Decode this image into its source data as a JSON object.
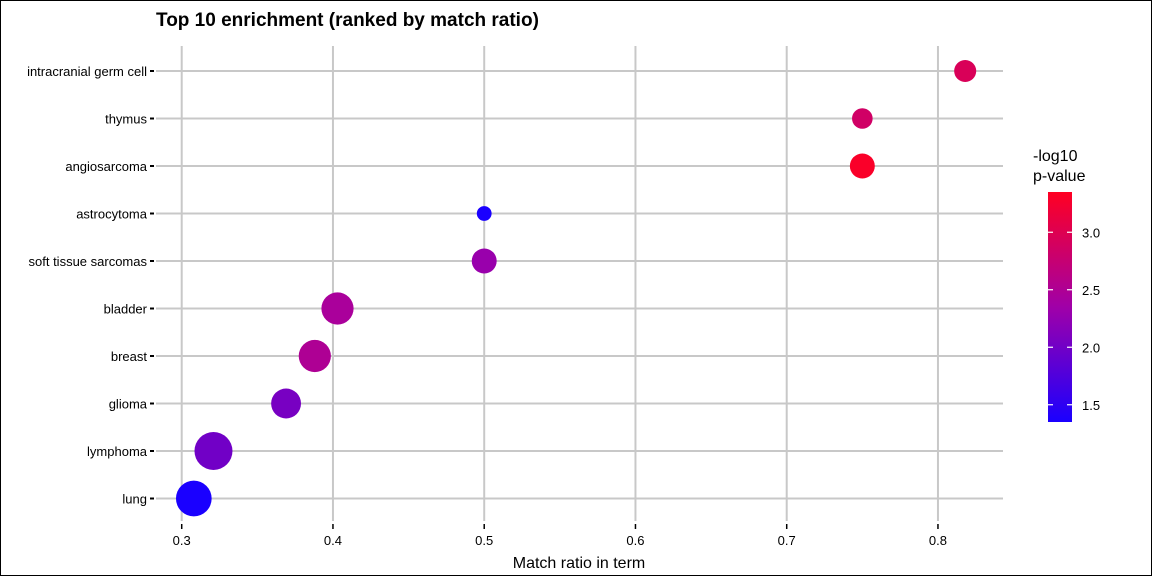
{
  "chart_data": {
    "type": "scatter",
    "title": "Top 10 enrichment (ranked by match ratio)",
    "xlabel": "Match ratio in term",
    "ylabel": "",
    "xlim": [
      0.283,
      0.843
    ],
    "x_ticks": [
      0.3,
      0.4,
      0.5,
      0.6,
      0.7,
      0.8
    ],
    "x_tick_labels": [
      "0.3",
      "0.4",
      "0.5",
      "0.6",
      "0.7",
      "0.8"
    ],
    "categories": [
      "intracranial germ cell",
      "thymus",
      "angiosarcoma",
      "astrocytoma",
      "soft tissue sarcomas",
      "bladder",
      "breast",
      "glioma",
      "lymphoma",
      "lung"
    ],
    "points": [
      {
        "term": "intracranial germ cell",
        "ratio": 0.818,
        "neg_log10_p": 2.95,
        "size": 0.45
      },
      {
        "term": "thymus",
        "ratio": 0.75,
        "neg_log10_p": 2.85,
        "size": 0.4
      },
      {
        "term": "angiosarcoma",
        "ratio": 0.75,
        "neg_log10_p": 3.3,
        "size": 0.55
      },
      {
        "term": "astrocytoma",
        "ratio": 0.5,
        "neg_log10_p": 1.35,
        "size": 0.2
      },
      {
        "term": "soft tissue sarcomas",
        "ratio": 0.5,
        "neg_log10_p": 2.3,
        "size": 0.55
      },
      {
        "term": "bladder",
        "ratio": 0.403,
        "neg_log10_p": 2.45,
        "size": 0.8
      },
      {
        "term": "breast",
        "ratio": 0.388,
        "neg_log10_p": 2.5,
        "size": 0.8
      },
      {
        "term": "glioma",
        "ratio": 0.369,
        "neg_log10_p": 2.05,
        "size": 0.72
      },
      {
        "term": "lymphoma",
        "ratio": 0.321,
        "neg_log10_p": 2.0,
        "size": 1.0
      },
      {
        "term": "lung",
        "ratio": 0.308,
        "neg_log10_p": 1.35,
        "size": 0.92
      }
    ],
    "color_scale": {
      "title_lines": [
        "-log10",
        "p-value"
      ],
      "min": 1.35,
      "max": 3.35,
      "ticks": [
        1.5,
        2.0,
        2.5,
        3.0
      ],
      "tick_labels": [
        "1.5",
        "2.0",
        "2.5",
        "3.0"
      ],
      "low_color": "#1a00ff",
      "high_color": "#ff0022"
    },
    "grid": true,
    "legend_position": "right"
  }
}
